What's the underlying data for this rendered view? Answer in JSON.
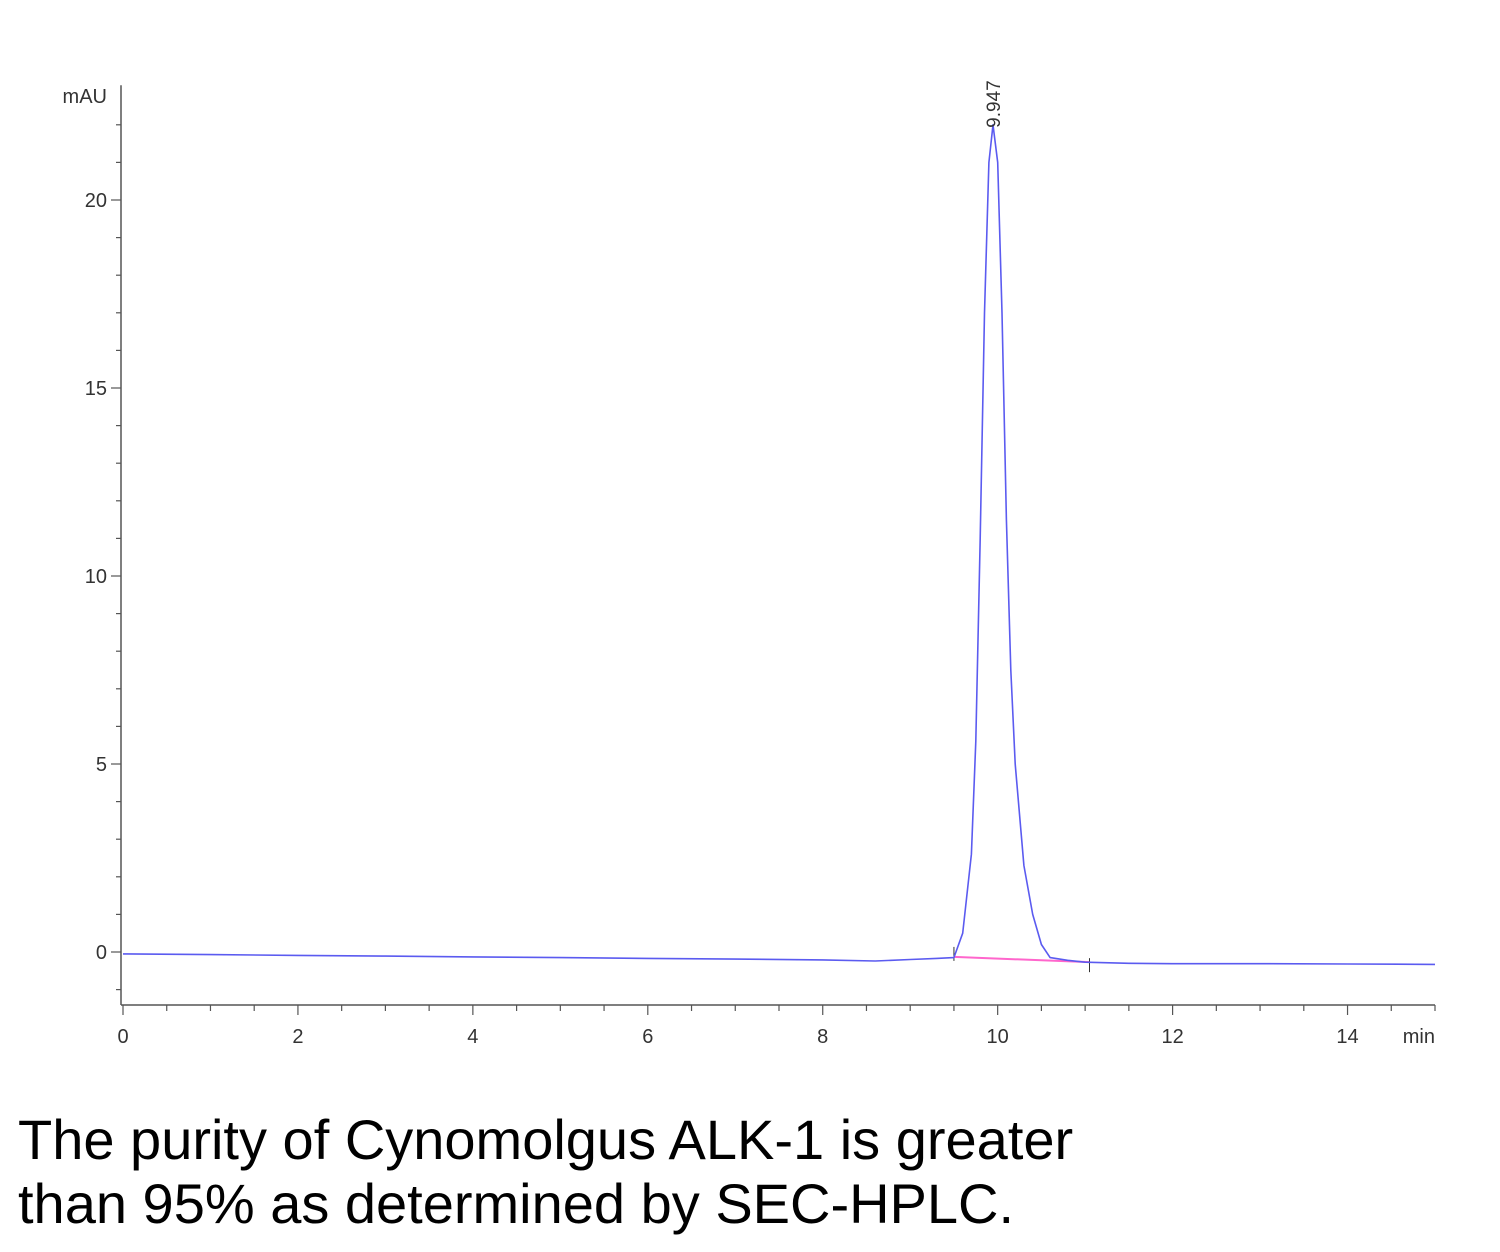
{
  "chart_data": {
    "type": "line",
    "y_unit": "mAU",
    "x_unit": "min",
    "xlim": [
      0,
      15
    ],
    "ylim": [
      -1.5,
      23
    ],
    "x_ticks": [
      0,
      2,
      4,
      6,
      8,
      10,
      12,
      14
    ],
    "y_ticks": [
      0,
      5,
      10,
      15,
      20
    ],
    "grid": false,
    "colors": {
      "trace": "#5b5bf0",
      "baseline": "#ff66cc",
      "axis": "#555555"
    },
    "peak": {
      "label": "9.947",
      "retention_time": 9.947,
      "height": 22.0
    },
    "series": [
      {
        "x": [
          0,
          1,
          2,
          3,
          4,
          5,
          6,
          7,
          8,
          8.6,
          9.0,
          9.3,
          9.5,
          9.6,
          9.7,
          9.75,
          9.8,
          9.85,
          9.9,
          9.947,
          10.0,
          10.05,
          10.1,
          10.15,
          10.2,
          10.3,
          10.4,
          10.5,
          10.6,
          10.8,
          11.0,
          11.5,
          12,
          13,
          14,
          15
        ],
        "y": [
          -0.05,
          -0.07,
          -0.09,
          -0.11,
          -0.13,
          -0.15,
          -0.17,
          -0.19,
          -0.21,
          -0.24,
          -0.2,
          -0.17,
          -0.15,
          0.5,
          2.6,
          5.6,
          11.0,
          17.0,
          21.0,
          22.0,
          21.0,
          17.0,
          11.5,
          7.5,
          5.0,
          2.3,
          1.0,
          0.2,
          -0.15,
          -0.22,
          -0.27,
          -0.3,
          -0.31,
          -0.31,
          -0.32,
          -0.33
        ]
      }
    ],
    "integration_baseline": {
      "x": [
        9.5,
        11.05
      ],
      "y": [
        -0.13,
        -0.27
      ]
    }
  },
  "caption": {
    "line1": "The purity of Cynomolgus ALK-1 is greater",
    "line2": "than 95% as determined by SEC-HPLC."
  }
}
